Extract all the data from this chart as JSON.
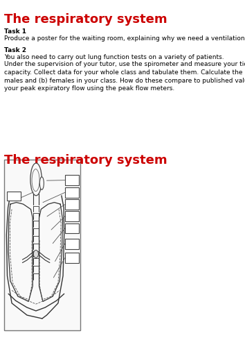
{
  "title1": "The respiratory system",
  "title_color": "#cc0000",
  "title_fontsize": 13,
  "task1_label": "Task 1",
  "task1_text": "Produce a poster for the waiting room, explaining why we need a ventilation system.",
  "task2_label": "Task 2",
  "task2_text1": "You also need to carry out lung function tests on a variety of patients.",
  "task2_text2": "Under the supervision of your tutor, use the spirometer and measure your tidal volume, ERV, IRV and vital\ncapacity. Collect data for your whole class and tabulate them. Calculate the range and average values for (a)\nmales and (b) females in your class. How do these compare to published values for normal range? Measure\nyour peak expiratory flow using the peak flow meters.",
  "title2": "The respiratory system",
  "bg_color": "#ffffff",
  "body_text_fontsize": 6.5
}
